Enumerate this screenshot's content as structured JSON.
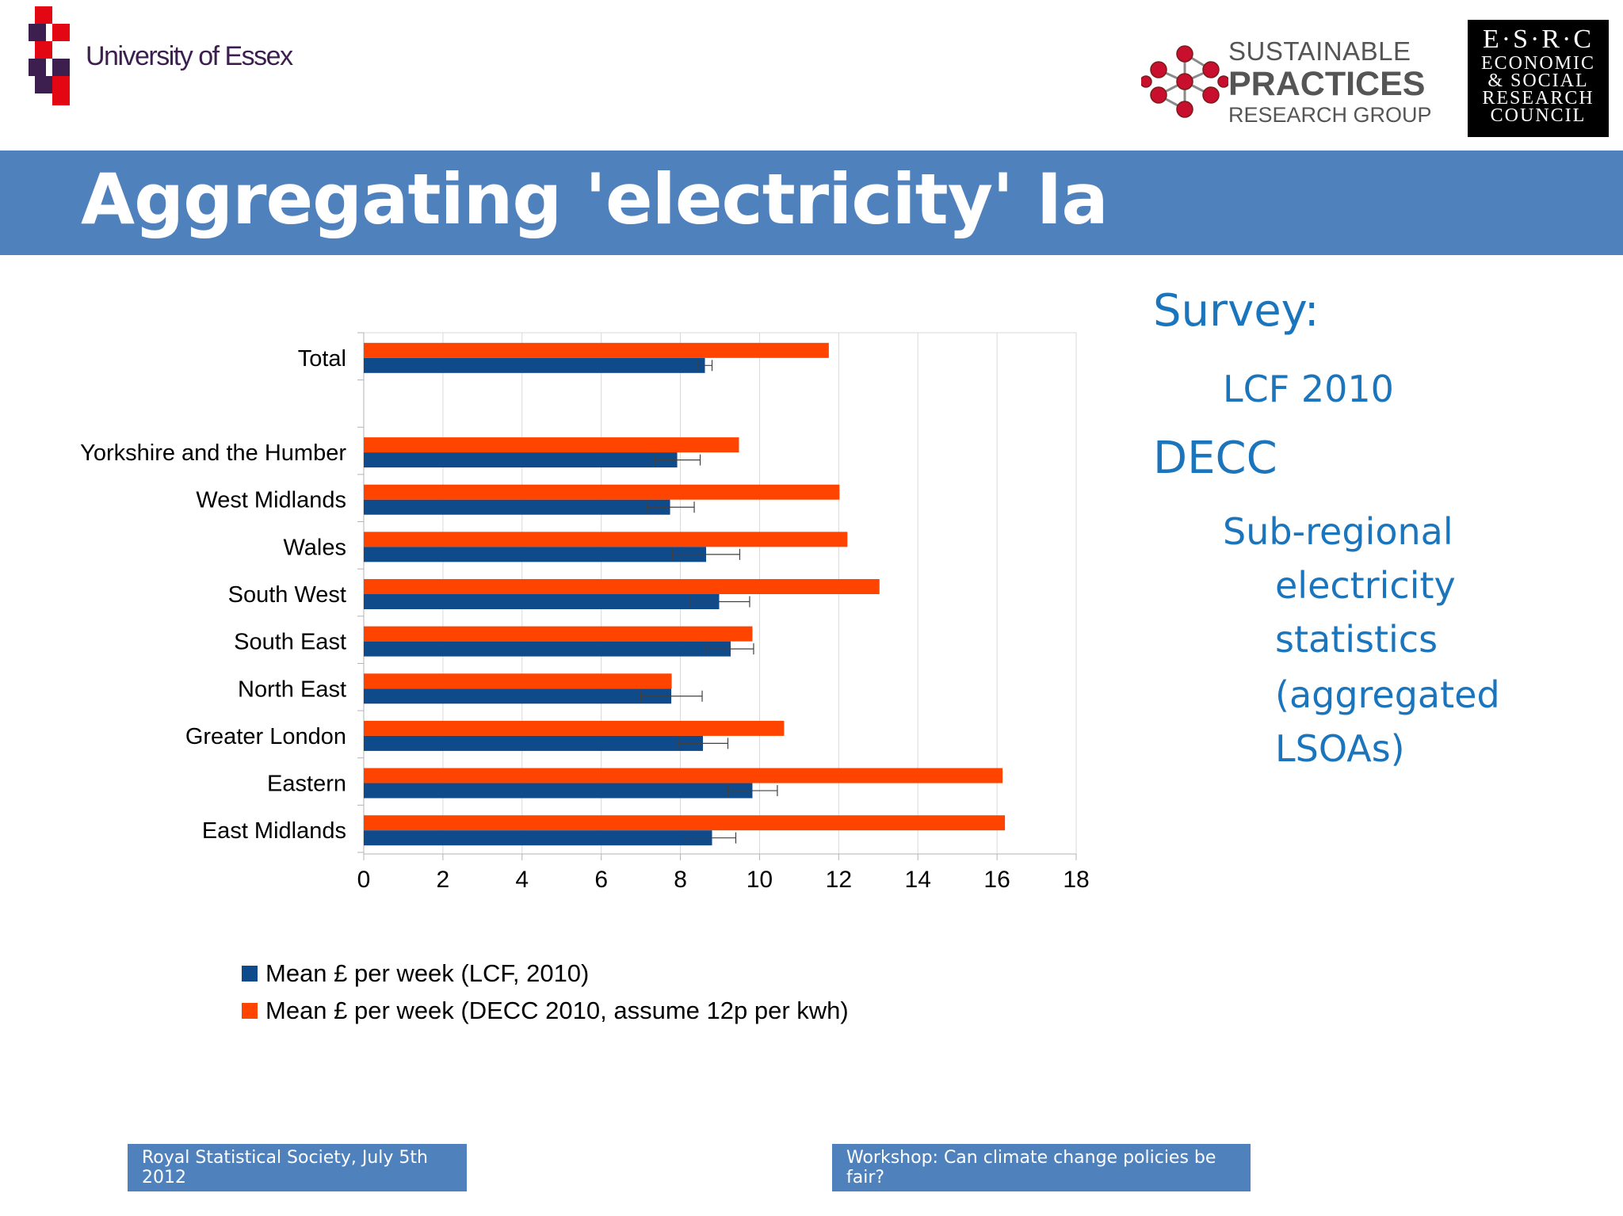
{
  "header": {
    "essex_name": "University of Essex",
    "sprg_line1": "SUSTAINABLE",
    "sprg_line2": "PRACTICES",
    "sprg_line3": "RESEARCH GROUP",
    "esrc_top": "E·S·R·C",
    "esrc_line1": "ECONOMIC",
    "esrc_line2": "& SOCIAL",
    "esrc_line3": "RESEARCH",
    "esrc_line4": "COUNCIL"
  },
  "slide": {
    "title": "Aggregating 'electricity' Ia"
  },
  "side_text": {
    "survey": "Survey:",
    "lcf": "LCF 2010",
    "decc": "DECC",
    "sub1": "Sub-regional",
    "sub2": "electricity",
    "sub3": "statistics",
    "sub4": "(aggregated",
    "sub5": "LSOAs)"
  },
  "footer": {
    "left": "Royal Statistical Society, July 5th 2012",
    "right": "Workshop: Can climate change policies be fair?"
  },
  "colors": {
    "lcf": "#0f4a8a",
    "decc": "#ff4400",
    "accent": "#4f81bd",
    "side_text": "#1b75bc"
  },
  "chart_data": {
    "type": "bar",
    "orientation": "horizontal",
    "categories": [
      "Total",
      "",
      "Yorkshire and the Humber",
      "West Midlands",
      "Wales",
      "South West",
      "South East",
      "North East",
      "Greater London",
      "Eastern",
      "East Midlands"
    ],
    "series": [
      {
        "name": "Mean £ per week (DECC 2010, assume 12p per kwh)",
        "values": [
          11.75,
          null,
          9.48,
          12.02,
          12.22,
          13.03,
          9.82,
          7.78,
          10.62,
          16.14,
          16.2
        ]
      },
      {
        "name": "Mean £ per week (LCF, 2010)",
        "values": [
          8.62,
          null,
          7.92,
          7.74,
          8.65,
          8.98,
          9.27,
          7.77,
          8.57,
          9.82,
          8.8
        ],
        "error_low": [
          8.45,
          null,
          7.35,
          7.15,
          7.8,
          8.25,
          8.65,
          7.0,
          7.95,
          9.2,
          8.1
        ],
        "error_high": [
          8.8,
          null,
          8.5,
          8.35,
          9.5,
          9.75,
          9.85,
          8.55,
          9.2,
          10.45,
          9.4
        ]
      }
    ],
    "xlim": [
      0,
      18
    ],
    "xticks": [
      0,
      2,
      4,
      6,
      8,
      10,
      12,
      14,
      16,
      18
    ],
    "grid": true,
    "legend_position": "bottom-left"
  }
}
